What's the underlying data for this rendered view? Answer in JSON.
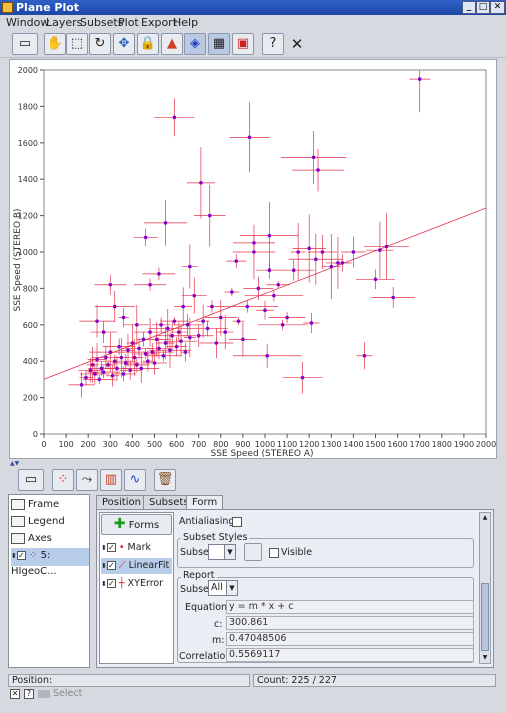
{
  "window": {
    "title": "Plane Plot"
  },
  "menu": [
    "Window",
    "Layers",
    "Subsets",
    "Plot",
    "Export",
    "Help"
  ],
  "plot": {
    "x_label": "SSE Speed (STEREO A)",
    "y_label": "SSE Speed (STEREO B)",
    "x_ticks": [
      "0",
      "100",
      "200",
      "300",
      "400",
      "500",
      "600",
      "700",
      "800",
      "900",
      "1000",
      "1100",
      "1200",
      "1300",
      "1400",
      "1500",
      "1600",
      "1700",
      "1800",
      "1900",
      "2000"
    ],
    "y_ticks": [
      "0",
      "200",
      "400",
      "600",
      "800",
      "1000",
      "1200",
      "1400",
      "1600",
      "1800",
      "2000"
    ]
  },
  "chart_data": {
    "type": "scatter",
    "xlabel": "SSE Speed (STEREO A)",
    "ylabel": "SSE Speed (STEREO B)",
    "xlim": [
      0,
      2000
    ],
    "ylim": [
      0,
      2000
    ],
    "grid": false,
    "fit": {
      "m": 0.47048506,
      "c": 300.861
    },
    "points": [
      [
        170,
        270
      ],
      [
        190,
        310
      ],
      [
        210,
        350
      ],
      [
        220,
        380
      ],
      [
        230,
        330
      ],
      [
        240,
        410
      ],
      [
        250,
        300
      ],
      [
        260,
        360
      ],
      [
        270,
        340
      ],
      [
        280,
        420
      ],
      [
        290,
        380
      ],
      [
        300,
        450
      ],
      [
        310,
        320
      ],
      [
        320,
        400
      ],
      [
        330,
        360
      ],
      [
        340,
        480
      ],
      [
        350,
        420
      ],
      [
        360,
        330
      ],
      [
        370,
        390
      ],
      [
        380,
        460
      ],
      [
        390,
        350
      ],
      [
        400,
        500
      ],
      [
        410,
        420
      ],
      [
        420,
        380
      ],
      [
        430,
        470
      ],
      [
        440,
        360
      ],
      [
        450,
        520
      ],
      [
        460,
        440
      ],
      [
        470,
        400
      ],
      [
        480,
        560
      ],
      [
        490,
        450
      ],
      [
        500,
        390
      ],
      [
        510,
        520
      ],
      [
        520,
        470
      ],
      [
        530,
        600
      ],
      [
        540,
        430
      ],
      [
        550,
        500
      ],
      [
        560,
        580
      ],
      [
        570,
        460
      ],
      [
        580,
        540
      ],
      [
        590,
        620
      ],
      [
        600,
        480
      ],
      [
        610,
        560
      ],
      [
        620,
        510
      ],
      [
        630,
        700
      ],
      [
        640,
        450
      ],
      [
        650,
        600
      ],
      [
        660,
        530
      ],
      [
        680,
        760
      ],
      [
        700,
        540
      ],
      [
        720,
        620
      ],
      [
        740,
        580
      ],
      [
        760,
        700
      ],
      [
        780,
        500
      ],
      [
        800,
        640
      ],
      [
        820,
        560
      ],
      [
        850,
        780
      ],
      [
        880,
        620
      ],
      [
        900,
        520
      ],
      [
        920,
        700
      ],
      [
        950,
        1050
      ],
      [
        970,
        800
      ],
      [
        1000,
        680
      ],
      [
        1020,
        900
      ],
      [
        1040,
        760
      ],
      [
        1060,
        820
      ],
      [
        1080,
        600
      ],
      [
        1100,
        640
      ],
      [
        1130,
        900
      ],
      [
        1150,
        1000
      ],
      [
        1170,
        310
      ],
      [
        1200,
        1020
      ],
      [
        1230,
        960
      ],
      [
        1260,
        1000
      ],
      [
        1300,
        920
      ],
      [
        1350,
        940
      ],
      [
        1400,
        1000
      ],
      [
        1450,
        430
      ],
      [
        1500,
        850
      ],
      [
        1550,
        1030
      ],
      [
        1580,
        750
      ],
      [
        1700,
        1950
      ],
      [
        1240,
        1450
      ],
      [
        1220,
        1520
      ],
      [
        930,
        1630
      ],
      [
        590,
        1740
      ],
      [
        950,
        1000
      ],
      [
        1020,
        1090
      ],
      [
        710,
        1380
      ],
      [
        750,
        1200
      ],
      [
        460,
        1080
      ],
      [
        550,
        1160
      ],
      [
        300,
        820
      ],
      [
        240,
        620
      ],
      [
        270,
        560
      ],
      [
        320,
        700
      ],
      [
        360,
        640
      ],
      [
        420,
        600
      ],
      [
        480,
        820
      ],
      [
        520,
        880
      ],
      [
        660,
        920
      ],
      [
        870,
        950
      ],
      [
        1010,
        430
      ],
      [
        1210,
        610
      ],
      [
        1330,
        940
      ],
      [
        1520,
        1010
      ]
    ]
  },
  "toolbar2": {
    "icons": [
      "frame-icon",
      "point-icon",
      "vector-icon",
      "histogram-icon",
      "function-icon",
      "delete-icon"
    ]
  },
  "layers": [
    "Frame",
    "Legend",
    "Axes",
    "5: HIgeoC..."
  ],
  "tabs": [
    "Position",
    "Subsets",
    "Form"
  ],
  "forms": {
    "button_label": "Forms",
    "items": [
      "Mark",
      "LinearFit",
      "XYError"
    ]
  },
  "form": {
    "antialiasing_label": "Antialiasing:",
    "subset_styles_title": "Subset Styles",
    "subset_label": "Subset:",
    "visible_label": "Visible",
    "report_title": "Report",
    "report_subset_label": "Subset:",
    "report_subset_value": "All",
    "equation_label": "Equation:",
    "equation_value": "y = m * x + c",
    "c_label": "c:",
    "c_value": "300.861",
    "m_label": "m:",
    "m_value": "0.47048506",
    "corr_label": "Correlation:",
    "corr_value": "0.5569117"
  },
  "status": {
    "position_label": "Position:",
    "count": "Count: 225 / 227",
    "select_label": "Select"
  },
  "colors": {
    "accent": "#2f61c6",
    "point": "#8a00c8",
    "error": "#e2304a",
    "fit": "#e2304a"
  }
}
